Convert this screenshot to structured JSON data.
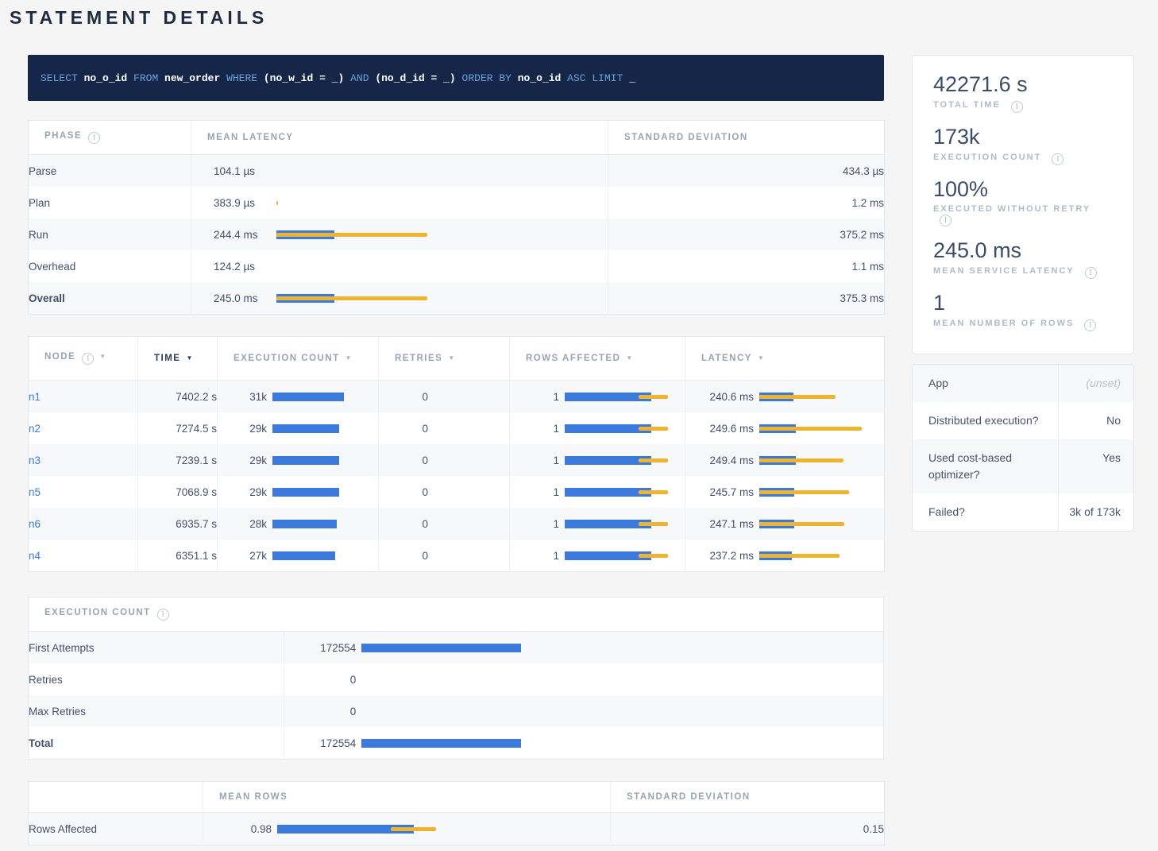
{
  "page": {
    "title": "STATEMENT DETAILS"
  },
  "colors": {
    "bar_blue": "#3b79dd",
    "bar_yellow": "#efb42f",
    "link_blue": "#3b79dd",
    "sql_background": "#152649",
    "sql_keyword": "#67a4d9"
  },
  "sql": {
    "tokens": [
      {
        "text": "SELECT",
        "type": "kw"
      },
      {
        "text": "no_o_id",
        "type": "id"
      },
      {
        "text": "FROM",
        "type": "kw"
      },
      {
        "text": "new_order",
        "type": "id"
      },
      {
        "text": "WHERE",
        "type": "kw"
      },
      {
        "text": "(no_w_id = _)",
        "type": "id"
      },
      {
        "text": "AND",
        "type": "kw"
      },
      {
        "text": "(no_d_id = _)",
        "type": "id"
      },
      {
        "text": "ORDER BY",
        "type": "kw"
      },
      {
        "text": "no_o_id",
        "type": "id"
      },
      {
        "text": "ASC LIMIT",
        "type": "kw"
      },
      {
        "text": "_",
        "type": "id"
      }
    ]
  },
  "phase_table": {
    "headers": {
      "phase": "PHASE",
      "mean": "MEAN LATENCY",
      "stddev": "STANDARD DEVIATION"
    },
    "rows": [
      {
        "phase": "Parse",
        "mean": "104.1 µs",
        "stddev": "434.3 µs",
        "bold": false,
        "bar": {
          "blue": 0,
          "yellow": 0
        }
      },
      {
        "phase": "Plan",
        "mean": "383.9 µs",
        "stddev": "1.2 ms",
        "bold": false,
        "bar": {
          "blue": 0,
          "yellow": 0.006
        }
      },
      {
        "phase": "Run",
        "mean": "244.4 ms",
        "stddev": "375.2 ms",
        "bold": false,
        "bar": {
          "blue": 0.18,
          "yellow": 0.467
        }
      },
      {
        "phase": "Overhead",
        "mean": "124.2 µs",
        "stddev": "1.1 ms",
        "bold": false,
        "bar": {
          "blue": 0,
          "yellow": 0
        }
      },
      {
        "phase": "Overall",
        "mean": "245.0 ms",
        "stddev": "375.3 ms",
        "bold": true,
        "bar": {
          "blue": 0.18,
          "yellow": 0.467
        }
      }
    ]
  },
  "node_table": {
    "headers": [
      {
        "label": "NODE",
        "info": true,
        "active": false
      },
      {
        "label": "TIME",
        "info": false,
        "active": true
      },
      {
        "label": "EXECUTION COUNT",
        "info": false,
        "active": false
      },
      {
        "label": "RETRIES",
        "info": false,
        "active": false
      },
      {
        "label": "ROWS AFFECTED",
        "info": false,
        "active": false
      },
      {
        "label": "LATENCY",
        "info": false,
        "active": false
      }
    ],
    "rows": [
      {
        "node": "n1",
        "time": "7402.2 s",
        "count": "31k",
        "count_bar": 0.73,
        "retries": "0",
        "rows": "1",
        "rows_bar": {
          "blue": 0.77,
          "yellow_left": 0.66,
          "yellow_w": 0.26
        },
        "latency": "240.6 ms",
        "lat_bar": {
          "blue": 0.29,
          "yellow": 0.65
        }
      },
      {
        "node": "n2",
        "time": "7274.5 s",
        "count": "29k",
        "count_bar": 0.685,
        "retries": "0",
        "rows": "1",
        "rows_bar": {
          "blue": 0.77,
          "yellow_left": 0.66,
          "yellow_w": 0.26
        },
        "latency": "249.6 ms",
        "lat_bar": {
          "blue": 0.31,
          "yellow": 0.88
        }
      },
      {
        "node": "n3",
        "time": "7239.1 s",
        "count": "29k",
        "count_bar": 0.685,
        "retries": "0",
        "rows": "1",
        "rows_bar": {
          "blue": 0.77,
          "yellow_left": 0.66,
          "yellow_w": 0.26
        },
        "latency": "249.4 ms",
        "lat_bar": {
          "blue": 0.31,
          "yellow": 0.72
        }
      },
      {
        "node": "n5",
        "time": "7068.9 s",
        "count": "29k",
        "count_bar": 0.685,
        "retries": "0",
        "rows": "1",
        "rows_bar": {
          "blue": 0.77,
          "yellow_left": 0.66,
          "yellow_w": 0.26
        },
        "latency": "245.7 ms",
        "lat_bar": {
          "blue": 0.3,
          "yellow": 0.77
        }
      },
      {
        "node": "n6",
        "time": "6935.7 s",
        "count": "28k",
        "count_bar": 0.66,
        "retries": "0",
        "rows": "1",
        "rows_bar": {
          "blue": 0.77,
          "yellow_left": 0.66,
          "yellow_w": 0.26
        },
        "latency": "247.1 ms",
        "lat_bar": {
          "blue": 0.3,
          "yellow": 0.73
        }
      },
      {
        "node": "n4",
        "time": "6351.1 s",
        "count": "27k",
        "count_bar": 0.64,
        "retries": "0",
        "rows": "1",
        "rows_bar": {
          "blue": 0.77,
          "yellow_left": 0.66,
          "yellow_w": 0.26
        },
        "latency": "237.2 ms",
        "lat_bar": {
          "blue": 0.28,
          "yellow": 0.69
        }
      }
    ]
  },
  "execution_count_table": {
    "title": "EXECUTION COUNT",
    "rows": [
      {
        "label": "First Attempts",
        "value": "172554",
        "bar": 0.31,
        "bold": false
      },
      {
        "label": "Retries",
        "value": "0",
        "bar": 0,
        "bold": false
      },
      {
        "label": "Max Retries",
        "value": "0",
        "bar": 0,
        "bold": false
      },
      {
        "label": "Total",
        "value": "172554",
        "bar": 0.31,
        "bold": true
      }
    ]
  },
  "rows_affected_table": {
    "headers": {
      "blank": "",
      "mean": "MEAN ROWS",
      "stddev": "STANDARD DEVIATION"
    },
    "rows": [
      {
        "label": "Rows Affected",
        "mean": "0.98",
        "stddev": "0.15",
        "bar": {
          "blue": 0.42,
          "yellow_left": 0.35,
          "yellow_w": 0.14
        }
      }
    ]
  },
  "summary_card": {
    "stats": [
      {
        "value": "42271.6 s",
        "label": "TOTAL TIME"
      },
      {
        "value": "173k",
        "label": "EXECUTION COUNT"
      },
      {
        "value": "100%",
        "label": "EXECUTED WITHOUT RETRY"
      },
      {
        "value": "245.0 ms",
        "label": "MEAN SERVICE LATENCY"
      },
      {
        "value": "1",
        "label": "MEAN NUMBER OF ROWS"
      }
    ]
  },
  "details_card": {
    "rows": [
      {
        "label": "App",
        "value": "(unset)",
        "muted": true
      },
      {
        "label": "Distributed execution?",
        "value": "No",
        "muted": false
      },
      {
        "label": "Used cost-based optimizer?",
        "value": "Yes",
        "muted": false
      },
      {
        "label": "Failed?",
        "value": "3k of 173k",
        "muted": false
      }
    ]
  }
}
